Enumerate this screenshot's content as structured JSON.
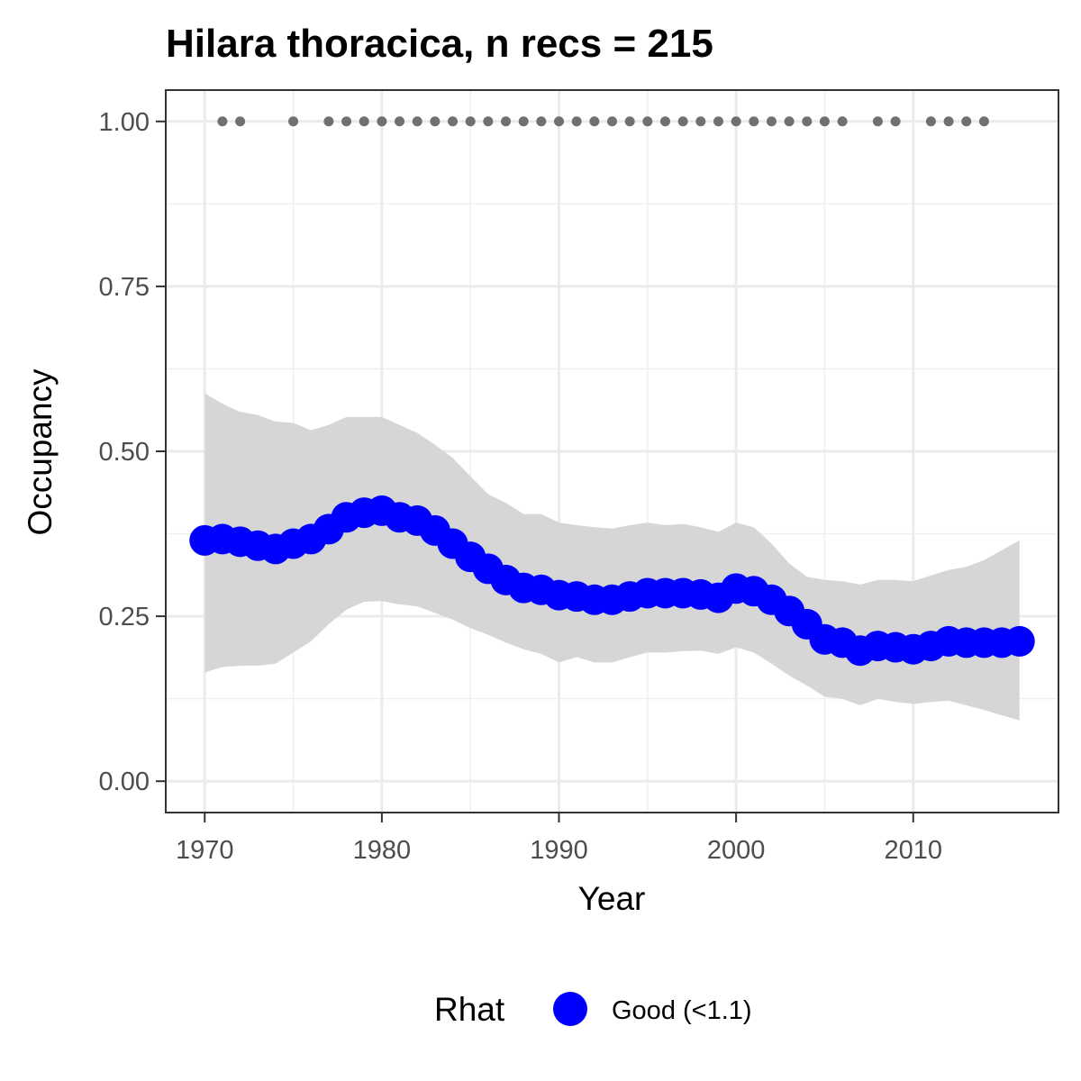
{
  "chart_data": {
    "type": "line",
    "title": "Hilara thoracica, n recs = 215",
    "xlabel": "Year",
    "ylabel": "Occupancy",
    "xlim": [
      1967.8,
      2018.2
    ],
    "ylim": [
      -0.0475,
      1.0475
    ],
    "x_ticks": [
      1970,
      1980,
      1990,
      2000,
      2010
    ],
    "x_tick_labels": [
      "1970",
      "1980",
      "1990",
      "2000",
      "2010"
    ],
    "y_ticks": [
      0,
      0.25,
      0.5,
      0.75,
      1.0
    ],
    "y_tick_labels": [
      "0.00",
      "0.25",
      "0.50",
      "0.75",
      "1.00"
    ],
    "grid": true,
    "legend": {
      "title": "Rhat",
      "placement": "bottom",
      "entries": [
        {
          "label": "Good (<1.1)",
          "color": "#0000ff"
        }
      ]
    },
    "colors": {
      "mean": "#0000ff",
      "ribbon": "#d6d6d6",
      "records": "#707070"
    },
    "series": [
      {
        "name": "Good (<1.1)",
        "x": [
          1970,
          1971,
          1972,
          1973,
          1974,
          1975,
          1976,
          1977,
          1978,
          1979,
          1980,
          1981,
          1982,
          1983,
          1984,
          1985,
          1986,
          1987,
          1988,
          1989,
          1990,
          1991,
          1992,
          1993,
          1994,
          1995,
          1996,
          1997,
          1998,
          1999,
          2000,
          2001,
          2002,
          2003,
          2004,
          2005,
          2006,
          2007,
          2008,
          2009,
          2010,
          2011,
          2012,
          2013,
          2014,
          2015,
          2016
        ],
        "mean": [
          0.365,
          0.367,
          0.363,
          0.357,
          0.352,
          0.36,
          0.367,
          0.382,
          0.4,
          0.407,
          0.41,
          0.4,
          0.395,
          0.38,
          0.36,
          0.34,
          0.322,
          0.305,
          0.293,
          0.29,
          0.282,
          0.28,
          0.275,
          0.275,
          0.28,
          0.285,
          0.285,
          0.285,
          0.283,
          0.278,
          0.292,
          0.288,
          0.275,
          0.258,
          0.238,
          0.215,
          0.21,
          0.198,
          0.205,
          0.203,
          0.2,
          0.205,
          0.212,
          0.21,
          0.21,
          0.21,
          0.212
        ],
        "lower": [
          0.165,
          0.173,
          0.175,
          0.175,
          0.178,
          0.195,
          0.212,
          0.238,
          0.26,
          0.272,
          0.273,
          0.268,
          0.265,
          0.255,
          0.245,
          0.232,
          0.222,
          0.21,
          0.2,
          0.193,
          0.18,
          0.188,
          0.18,
          0.18,
          0.188,
          0.195,
          0.195,
          0.197,
          0.198,
          0.193,
          0.203,
          0.195,
          0.178,
          0.16,
          0.145,
          0.128,
          0.125,
          0.115,
          0.125,
          0.12,
          0.117,
          0.12,
          0.122,
          0.115,
          0.108,
          0.1,
          0.092
        ],
        "upper": [
          0.588,
          0.572,
          0.56,
          0.555,
          0.545,
          0.543,
          0.532,
          0.54,
          0.552,
          0.552,
          0.552,
          0.54,
          0.528,
          0.51,
          0.49,
          0.462,
          0.435,
          0.422,
          0.405,
          0.405,
          0.392,
          0.388,
          0.385,
          0.383,
          0.388,
          0.392,
          0.388,
          0.39,
          0.385,
          0.378,
          0.392,
          0.385,
          0.36,
          0.33,
          0.31,
          0.305,
          0.303,
          0.298,
          0.305,
          0.305,
          0.303,
          0.312,
          0.32,
          0.325,
          0.335,
          0.35,
          0.365
        ]
      },
      {
        "name": "",
        "type": "scatter",
        "x": [
          1971,
          1972,
          1975,
          1977,
          1978,
          1979,
          1980,
          1981,
          1982,
          1983,
          1984,
          1985,
          1986,
          1987,
          1988,
          1989,
          1990,
          1991,
          1992,
          1993,
          1994,
          1995,
          1996,
          1997,
          1998,
          1999,
          2000,
          2001,
          2002,
          2003,
          2004,
          2005,
          2006,
          2008,
          2009,
          2011,
          2012,
          2013,
          2014
        ],
        "y": [
          1,
          1,
          1,
          1,
          1,
          1,
          1,
          1,
          1,
          1,
          1,
          1,
          1,
          1,
          1,
          1,
          1,
          1,
          1,
          1,
          1,
          1,
          1,
          1,
          1,
          1,
          1,
          1,
          1,
          1,
          1,
          1,
          1,
          1,
          1,
          1,
          1,
          1,
          1
        ]
      }
    ]
  }
}
